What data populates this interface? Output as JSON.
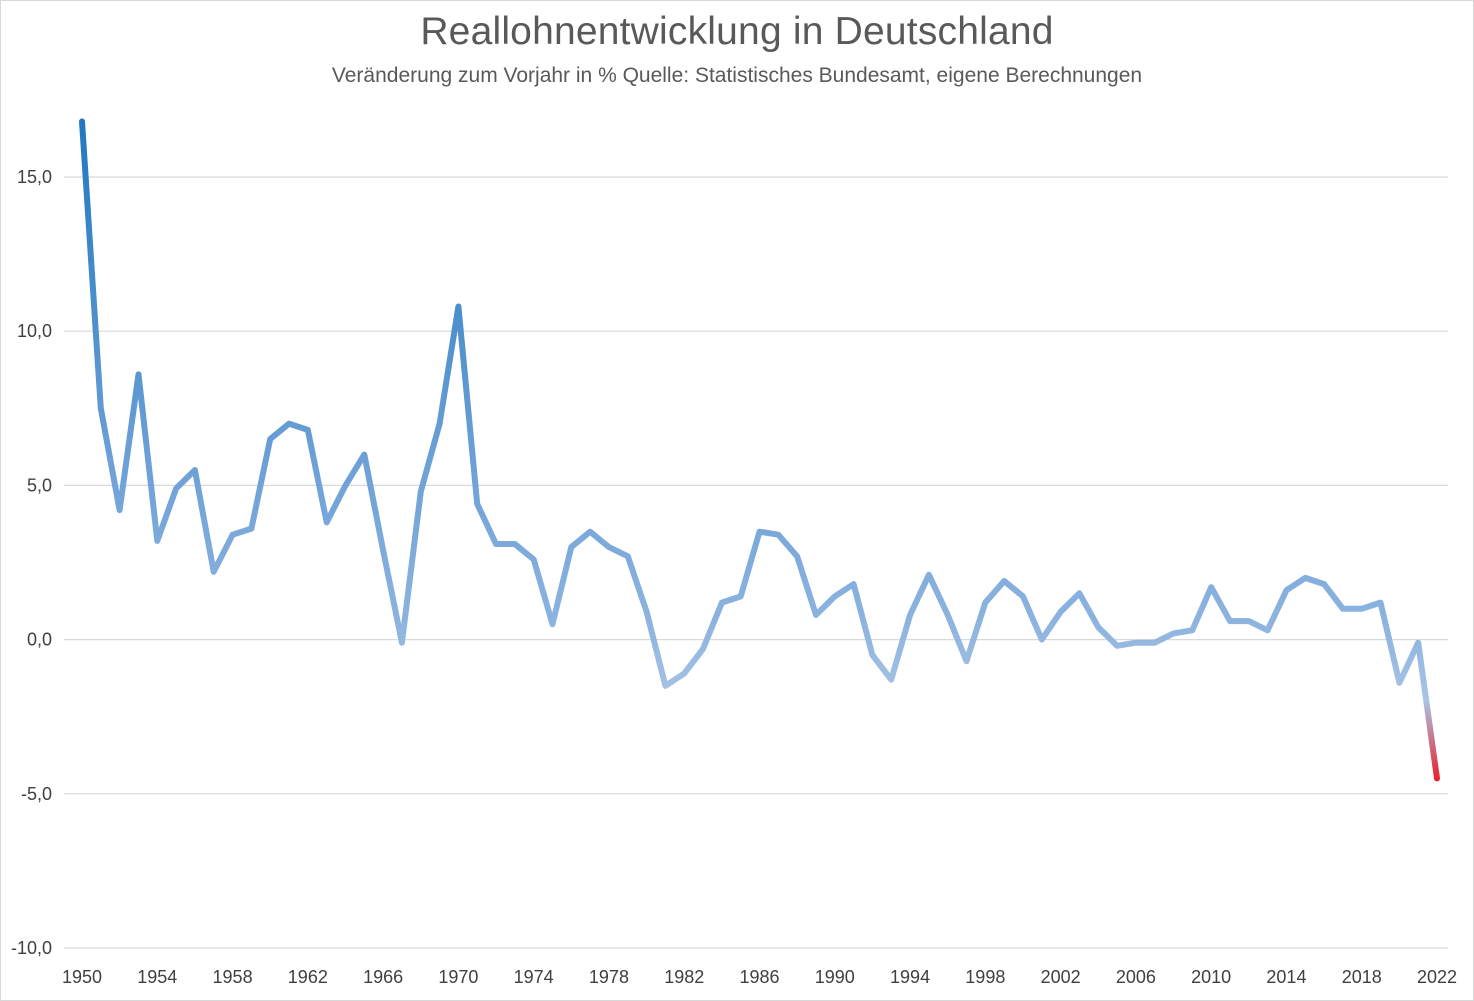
{
  "chart_data": {
    "type": "line",
    "title": "Reallohnentwicklung in Deutschland",
    "subtitle": "Veränderung zum Vorjahr in % Quelle: Statistisches Bundesamt, eigene Berechnungen",
    "xlabel": "",
    "ylabel": "",
    "ylim": [
      -10,
      17
    ],
    "y_ticks": [
      "15,0",
      "10,0",
      "5,0",
      "0,0",
      "-5,0",
      "-10,0"
    ],
    "y_tick_values": [
      15,
      10,
      5,
      0,
      -5,
      -10
    ],
    "x_ticks": [
      "1950",
      "1954",
      "1958",
      "1962",
      "1966",
      "1970",
      "1974",
      "1978",
      "1982",
      "1986",
      "1990",
      "1994",
      "1998",
      "2002",
      "2006",
      "2010",
      "2014",
      "2018",
      "2022"
    ],
    "x_tick_values": [
      1950,
      1954,
      1958,
      1962,
      1966,
      1970,
      1974,
      1978,
      1982,
      1986,
      1990,
      1994,
      1998,
      2002,
      2006,
      2010,
      2014,
      2018,
      2022
    ],
    "grid": true,
    "legend": "none",
    "colors": {
      "start": "#1f77bf",
      "mid": "#8cb3df",
      "end_negative": "#e8202a"
    },
    "x": [
      1950,
      1951,
      1952,
      1953,
      1954,
      1955,
      1956,
      1957,
      1958,
      1959,
      1960,
      1961,
      1962,
      1963,
      1964,
      1965,
      1966,
      1967,
      1968,
      1969,
      1970,
      1971,
      1972,
      1973,
      1974,
      1975,
      1976,
      1977,
      1978,
      1979,
      1980,
      1981,
      1982,
      1983,
      1984,
      1985,
      1986,
      1987,
      1988,
      1989,
      1990,
      1991,
      1992,
      1993,
      1994,
      1995,
      1996,
      1997,
      1998,
      1999,
      2000,
      2001,
      2002,
      2003,
      2004,
      2005,
      2006,
      2007,
      2008,
      2009,
      2010,
      2011,
      2012,
      2013,
      2014,
      2015,
      2016,
      2017,
      2018,
      2019,
      2020,
      2021,
      2022
    ],
    "values": [
      17.0,
      7.5,
      4.2,
      8.6,
      3.2,
      4.9,
      5.5,
      2.2,
      3.4,
      3.6,
      6.5,
      7.0,
      6.8,
      3.8,
      5.0,
      6.0,
      2.9,
      -0.1,
      4.8,
      7.0,
      10.8,
      4.4,
      3.1,
      3.1,
      2.6,
      0.5,
      3.0,
      3.5,
      3.0,
      2.7,
      0.9,
      -1.5,
      -1.1,
      -0.3,
      1.2,
      1.4,
      3.5,
      3.4,
      2.7,
      0.8,
      1.4,
      1.8,
      -0.5,
      -1.3,
      0.8,
      2.1,
      0.8,
      -0.7,
      1.2,
      1.9,
      1.4,
      0.0,
      0.9,
      1.5,
      0.4,
      -0.2,
      -0.1,
      -0.1,
      0.2,
      0.3,
      1.7,
      0.6,
      0.6,
      0.3,
      1.6,
      2.0,
      1.8,
      1.0,
      1.0,
      1.2,
      -1.4,
      -0.1,
      -4.5
    ]
  }
}
